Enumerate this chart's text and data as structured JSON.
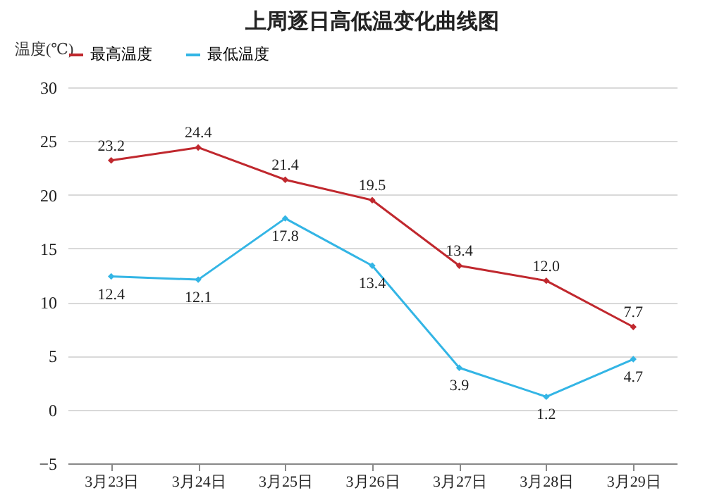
{
  "chart_data": {
    "type": "line",
    "title": "上周逐日高低温变化曲线图",
    "ylabel": "温度(℃)",
    "categories": [
      "3月23日",
      "3月24日",
      "3月25日",
      "3月26日",
      "3月27日",
      "3月28日",
      "3月29日"
    ],
    "series": [
      {
        "name": "最高温度",
        "color": "#c0282e",
        "values": [
          23.2,
          24.4,
          21.4,
          19.5,
          13.4,
          12.0,
          7.7
        ],
        "value_labels": [
          "23.2",
          "24.4",
          "21.4",
          "19.5",
          "13.4",
          "12.0",
          "7.7"
        ]
      },
      {
        "name": "最低温度",
        "color": "#33b5e5",
        "values": [
          12.4,
          12.1,
          17.8,
          13.4,
          3.9,
          1.2,
          4.7
        ],
        "value_labels": [
          "12.4",
          "12.1",
          "17.8",
          "13.4",
          "3.9",
          "1.2",
          "4.7"
        ]
      }
    ],
    "ylim": [
      -5,
      30
    ],
    "yticks": [
      -5,
      0,
      5,
      10,
      15,
      20,
      25,
      30
    ],
    "grid": "y",
    "legend": "top",
    "marker": "diamond"
  }
}
